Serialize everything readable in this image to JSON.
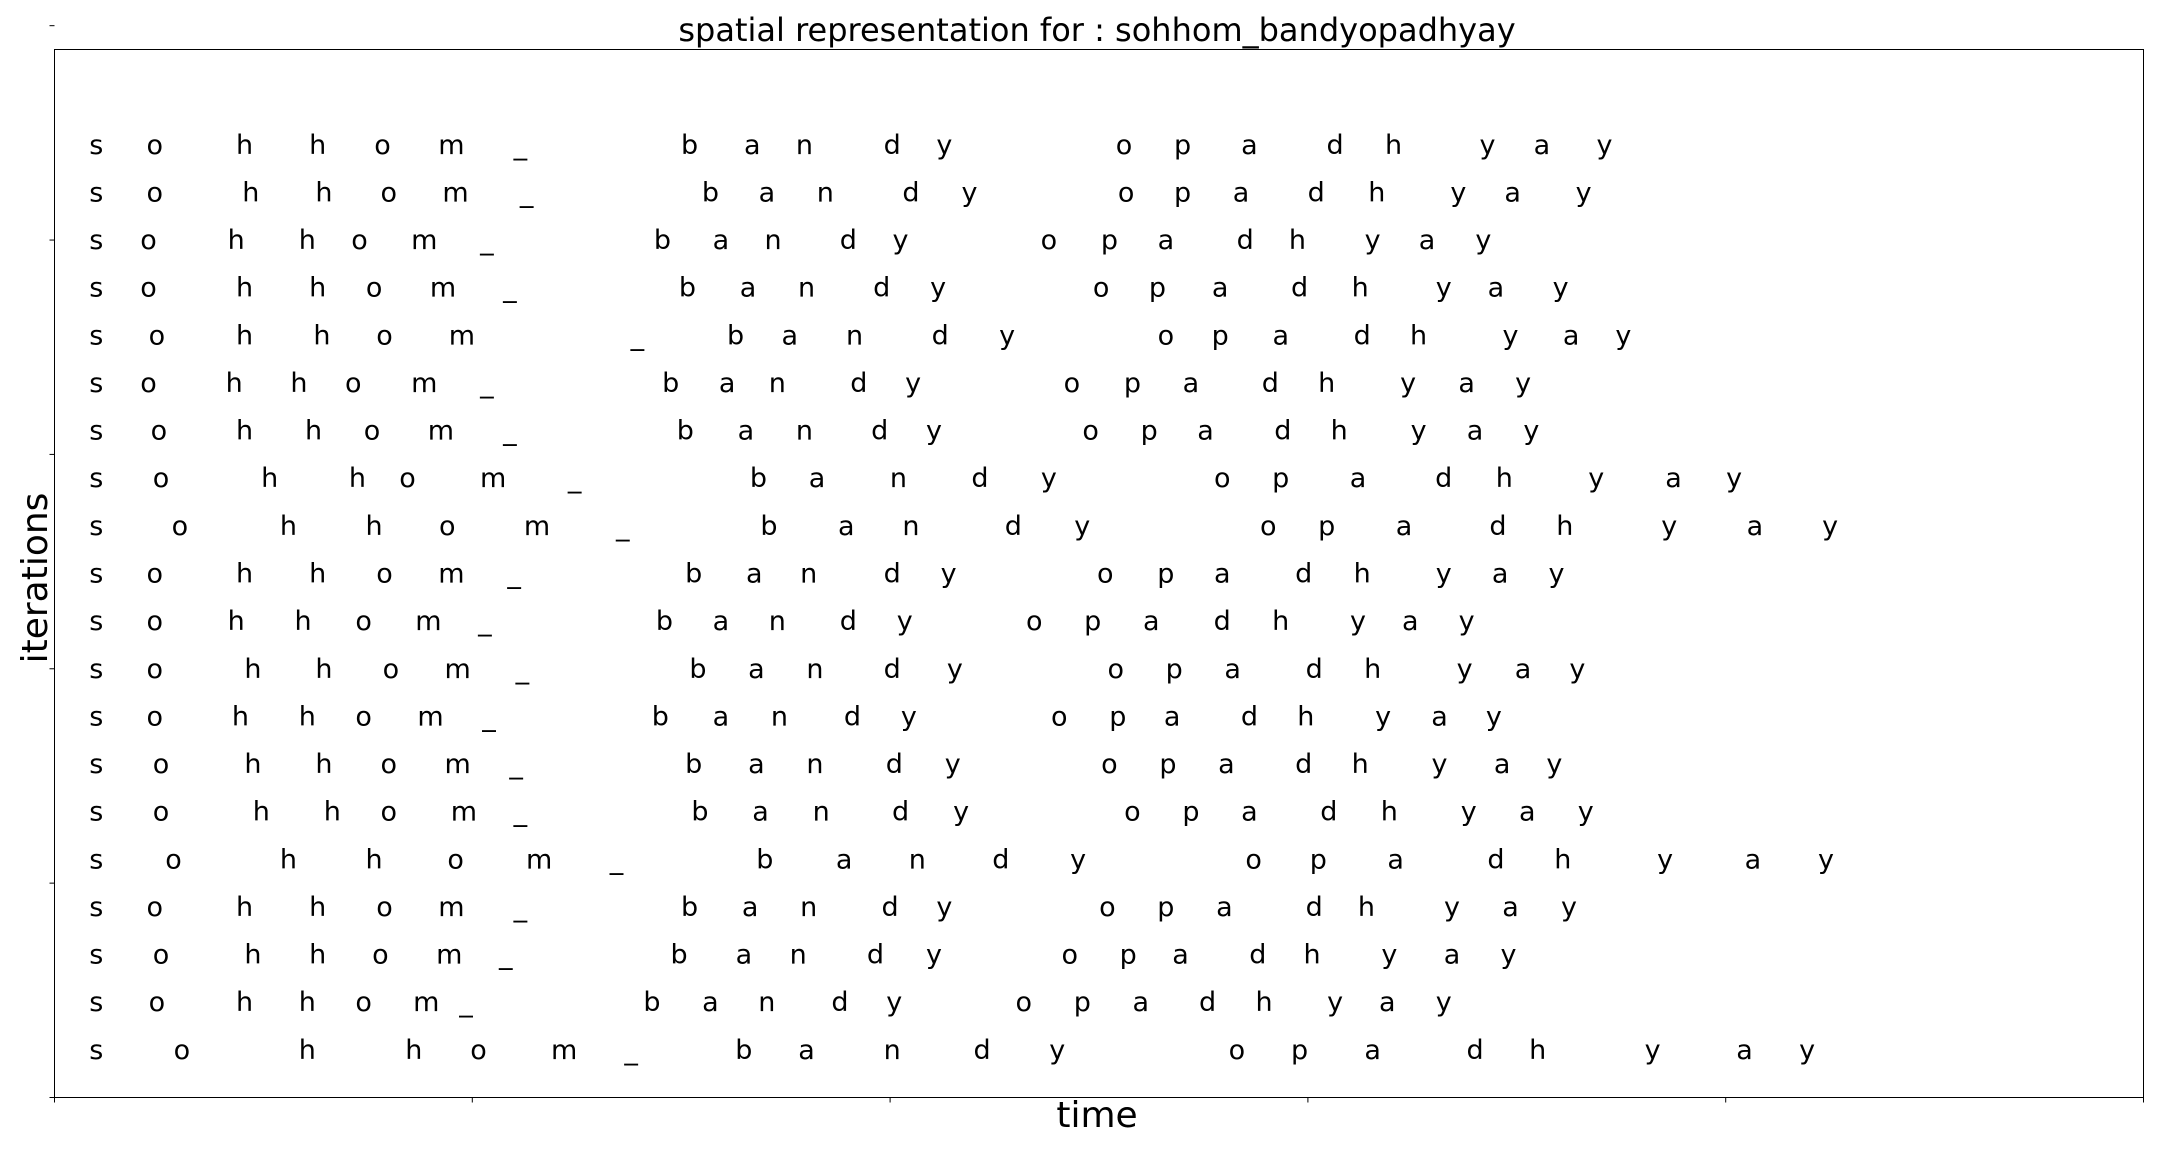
{
  "chart_data": {
    "type": "scatter",
    "title": "spatial representation for : sohhom_bandyopadhyay",
    "xlabel": "time",
    "ylabel": "iterations",
    "grid": false,
    "legend": false,
    "xlim": [
      0,
      100
    ],
    "ylim": [
      0,
      22
    ],
    "x_ticks": [
      0,
      20,
      40,
      60,
      80,
      100
    ],
    "y_ticks": [
      0,
      4.5,
      9,
      13.5,
      18,
      22.5
    ],
    "tick_labels_visible": false,
    "characters": [
      "s",
      "o",
      "h",
      "h",
      "o",
      "m",
      "_",
      "b",
      "a",
      "n",
      "d",
      "y",
      "o",
      "p",
      "a",
      "d",
      "h",
      "y",
      "a",
      "y"
    ],
    "series": [
      {
        "y": 20,
        "x": [
          2.0,
          4.8,
          9.1,
          12.6,
          15.7,
          19.0,
          22.3,
          30.4,
          33.4,
          35.9,
          40.1,
          42.6,
          51.2,
          54.0,
          57.2,
          61.3,
          64.1,
          68.6,
          71.2,
          74.2
        ]
      },
      {
        "y": 19,
        "x": [
          2.0,
          4.8,
          9.4,
          12.9,
          16.0,
          19.2,
          22.6,
          31.4,
          34.1,
          36.9,
          41.0,
          43.8,
          51.3,
          54.0,
          56.8,
          60.4,
          63.3,
          67.2,
          69.8,
          73.2
        ]
      },
      {
        "y": 18,
        "x": [
          2.0,
          4.5,
          8.7,
          12.1,
          14.6,
          17.7,
          20.7,
          29.1,
          31.9,
          34.4,
          38.0,
          40.5,
          47.6,
          50.5,
          53.2,
          57.0,
          59.5,
          63.1,
          65.7,
          68.4
        ]
      },
      {
        "y": 17,
        "x": [
          2.0,
          4.5,
          9.1,
          12.6,
          15.3,
          18.6,
          21.8,
          30.3,
          33.2,
          36.0,
          39.6,
          42.3,
          50.1,
          52.8,
          55.8,
          59.6,
          62.5,
          66.5,
          69.0,
          72.1
        ]
      },
      {
        "y": 16,
        "x": [
          2.0,
          4.9,
          9.1,
          12.8,
          15.8,
          19.5,
          27.9,
          32.6,
          35.2,
          38.3,
          42.4,
          45.6,
          53.2,
          55.8,
          58.7,
          62.6,
          65.3,
          69.7,
          72.6,
          75.1
        ]
      },
      {
        "y": 15,
        "x": [
          2.0,
          4.5,
          8.6,
          11.7,
          14.3,
          17.7,
          20.7,
          29.5,
          32.2,
          34.6,
          38.5,
          41.1,
          48.7,
          51.6,
          54.4,
          58.2,
          60.9,
          64.8,
          67.6,
          70.3
        ]
      },
      {
        "y": 14,
        "x": [
          2.0,
          5.0,
          9.1,
          12.4,
          15.2,
          18.5,
          21.8,
          30.2,
          33.1,
          35.9,
          39.5,
          42.1,
          49.6,
          52.4,
          55.1,
          58.8,
          61.5,
          65.3,
          68.0,
          70.7
        ]
      },
      {
        "y": 13,
        "x": [
          2.0,
          5.1,
          10.3,
          14.5,
          16.9,
          21.0,
          24.9,
          33.7,
          36.5,
          40.4,
          44.3,
          47.6,
          55.9,
          58.7,
          62.4,
          66.5,
          69.4,
          73.8,
          77.5,
          80.4
        ]
      },
      {
        "y": 12,
        "x": [
          2.0,
          6.0,
          11.2,
          15.3,
          18.8,
          23.1,
          27.2,
          34.2,
          37.9,
          41.0,
          45.9,
          49.2,
          58.1,
          60.9,
          64.6,
          69.1,
          72.3,
          77.3,
          81.4,
          85.0
        ]
      },
      {
        "y": 11,
        "x": [
          2.0,
          4.8,
          9.1,
          12.6,
          15.8,
          19.0,
          22.0,
          30.6,
          33.5,
          36.1,
          40.1,
          42.8,
          50.3,
          53.2,
          55.9,
          59.8,
          62.6,
          66.5,
          69.2,
          71.9
        ]
      },
      {
        "y": 10,
        "x": [
          2.0,
          4.8,
          8.7,
          11.9,
          14.8,
          17.9,
          20.6,
          29.2,
          31.9,
          34.6,
          38.0,
          40.7,
          46.9,
          49.7,
          52.5,
          55.9,
          58.7,
          62.4,
          64.9,
          67.6
        ]
      },
      {
        "y": 9,
        "x": [
          2.0,
          4.8,
          9.5,
          12.9,
          16.1,
          19.3,
          22.4,
          30.8,
          33.6,
          36.4,
          40.1,
          43.1,
          50.8,
          53.6,
          56.4,
          60.3,
          63.1,
          67.5,
          70.3,
          72.9
        ]
      },
      {
        "y": 8,
        "x": [
          2.0,
          4.8,
          8.9,
          12.1,
          14.8,
          18.0,
          20.8,
          29.0,
          31.9,
          34.7,
          38.2,
          40.9,
          48.1,
          50.9,
          53.5,
          57.2,
          59.9,
          63.6,
          66.3,
          68.9
        ]
      },
      {
        "y": 7,
        "x": [
          2.0,
          5.1,
          9.5,
          12.9,
          16.0,
          19.3,
          22.1,
          30.6,
          33.6,
          36.4,
          40.2,
          43.0,
          50.5,
          53.3,
          56.1,
          59.8,
          62.5,
          66.3,
          69.3,
          71.8
        ]
      },
      {
        "y": 6,
        "x": [
          2.0,
          5.1,
          9.9,
          13.3,
          16.0,
          19.6,
          22.3,
          30.9,
          33.8,
          36.7,
          40.5,
          43.4,
          51.6,
          54.4,
          57.2,
          61.0,
          63.9,
          67.7,
          70.5,
          73.3
        ]
      },
      {
        "y": 5,
        "x": [
          2.0,
          5.7,
          11.2,
          15.3,
          19.2,
          23.2,
          26.9,
          34.0,
          37.8,
          41.3,
          45.3,
          49.0,
          57.4,
          60.5,
          64.2,
          69.0,
          72.2,
          77.1,
          81.3,
          84.8
        ]
      },
      {
        "y": 4,
        "x": [
          2.0,
          4.8,
          9.1,
          12.6,
          15.8,
          19.0,
          22.3,
          30.4,
          33.3,
          36.1,
          40.0,
          42.6,
          50.4,
          53.2,
          56.0,
          60.3,
          62.8,
          66.9,
          69.7,
          72.5
        ]
      },
      {
        "y": 3,
        "x": [
          2.0,
          5.1,
          9.5,
          12.6,
          15.6,
          18.9,
          21.6,
          29.9,
          33.0,
          35.6,
          39.3,
          42.1,
          48.6,
          51.4,
          53.9,
          57.6,
          60.2,
          63.9,
          66.9,
          69.6
        ]
      },
      {
        "y": 2,
        "x": [
          2.0,
          4.9,
          9.1,
          12.1,
          14.8,
          17.8,
          19.7,
          28.6,
          31.4,
          34.1,
          37.6,
          40.2,
          46.4,
          49.2,
          52.0,
          55.2,
          57.9,
          61.3,
          63.8,
          66.5
        ]
      },
      {
        "y": 1,
        "x": [
          2.0,
          6.1,
          12.1,
          17.2,
          20.3,
          24.4,
          27.6,
          33.0,
          36.0,
          40.1,
          44.4,
          48.0,
          56.6,
          59.6,
          63.1,
          68.0,
          71.0,
          76.5,
          80.9,
          83.9
        ]
      }
    ]
  }
}
